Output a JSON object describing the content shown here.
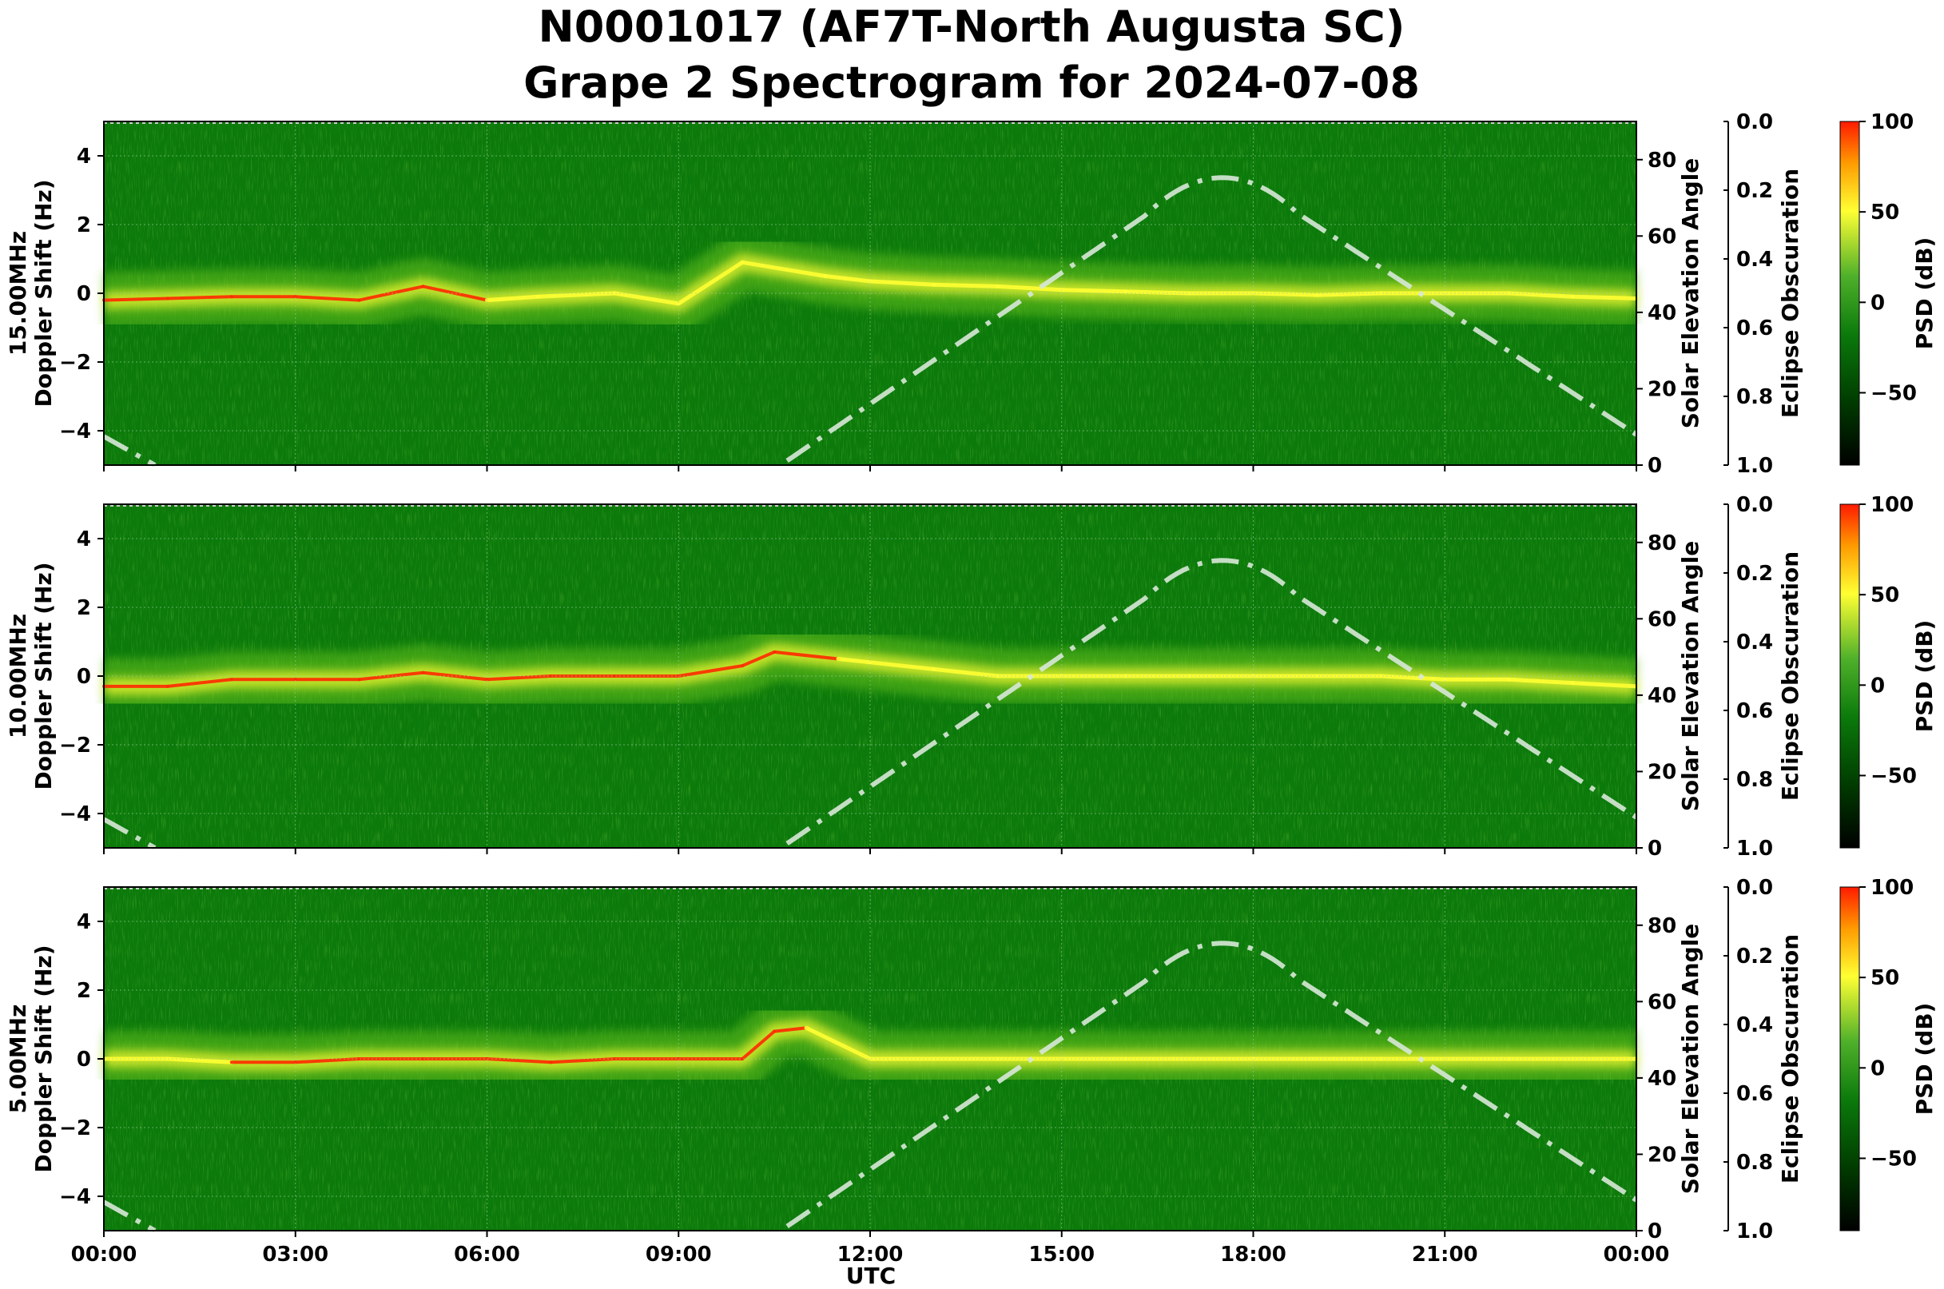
{
  "figure": {
    "title_line1": "N0001017 (AF7T-North Augusta SC)",
    "title_line2": "Grape 2 Spectrogram for 2024-07-08",
    "xlabel": "UTC"
  },
  "colors": {
    "background": "#0b7a0b",
    "mid": "#66c21a",
    "bright": "#ffff33",
    "hot": "#ff2a00",
    "elevation_curve": "#d8e8d8",
    "grid": "#9fcf9f"
  },
  "chart_data": [
    {
      "type": "heatmap",
      "frequency_label": "15.00MHz",
      "ylabel": "Doppler Shift (Hz)",
      "ylim": [
        -5,
        5
      ],
      "yticks": [
        -4,
        -2,
        0,
        2,
        4
      ],
      "ytick_labels": [
        "−4",
        "−2",
        "0",
        "2",
        "4"
      ],
      "x_range": [
        "00:00",
        "00:00"
      ],
      "xticks_hours": [
        0,
        3,
        6,
        9,
        12,
        15,
        18,
        21,
        24
      ],
      "xtick_labels": [
        "00:00",
        "03:00",
        "06:00",
        "09:00",
        "12:00",
        "15:00",
        "18:00",
        "21:00",
        "00:00"
      ],
      "right_axis_label": "Solar Elevation Angle",
      "right_axis_range": [
        0,
        90
      ],
      "right_ticks": [
        0,
        20,
        40,
        60,
        80
      ],
      "obscuration_label": "Eclipse Obscuration",
      "obscuration_ticks": [
        "0.0",
        "0.2",
        "0.4",
        "0.6",
        "0.8",
        "1.0"
      ],
      "colorbar_label": "PSD (dB)",
      "colorbar_ticks": [
        "100",
        "50",
        "0",
        "−50"
      ],
      "colorbar_values": [
        100,
        50,
        0,
        -50
      ],
      "colorbar_range": [
        -90,
        100
      ],
      "grid": true,
      "doppler_trace": {
        "hours": [
          0,
          1,
          2,
          3,
          4,
          5,
          6,
          6.8,
          8,
          9,
          10,
          11.3,
          12,
          13,
          14,
          15,
          16,
          17,
          18,
          19,
          20,
          21,
          22,
          23,
          24
        ],
        "values_hz": [
          -0.2,
          -0.15,
          -0.1,
          -0.1,
          -0.2,
          0.2,
          -0.2,
          -0.1,
          0.0,
          -0.3,
          0.9,
          0.5,
          0.35,
          0.25,
          0.2,
          0.1,
          0.05,
          0.0,
          0.0,
          -0.05,
          0.0,
          0.0,
          0.0,
          -0.1,
          -0.15
        ],
        "hot": [
          true,
          true,
          true,
          true,
          true,
          true,
          true,
          false,
          false,
          false,
          false,
          false,
          false,
          false,
          false,
          false,
          false,
          false,
          false,
          false,
          false,
          false,
          false,
          false,
          false
        ]
      },
      "solar_elevation": {
        "hours": [
          0,
          0.8,
          10.6,
          17.5,
          24
        ],
        "degrees": [
          7.5,
          0,
          0,
          79,
          8
        ]
      }
    },
    {
      "type": "heatmap",
      "frequency_label": "10.00MHz",
      "ylabel": "Doppler Shift (Hz)",
      "ylim": [
        -5,
        5
      ],
      "yticks": [
        -4,
        -2,
        0,
        2,
        4
      ],
      "ytick_labels": [
        "−4",
        "−2",
        "0",
        "2",
        "4"
      ],
      "x_range": [
        "00:00",
        "00:00"
      ],
      "xticks_hours": [
        0,
        3,
        6,
        9,
        12,
        15,
        18,
        21,
        24
      ],
      "xtick_labels": [
        "00:00",
        "03:00",
        "06:00",
        "09:00",
        "12:00",
        "15:00",
        "18:00",
        "21:00",
        "00:00"
      ],
      "right_axis_label": "Solar Elevation Angle",
      "right_axis_range": [
        0,
        90
      ],
      "right_ticks": [
        0,
        20,
        40,
        60,
        80
      ],
      "obscuration_label": "Eclipse Obscuration",
      "obscuration_ticks": [
        "0.0",
        "0.2",
        "0.4",
        "0.6",
        "0.8",
        "1.0"
      ],
      "colorbar_label": "PSD (dB)",
      "colorbar_ticks": [
        "100",
        "50",
        "0",
        "−50"
      ],
      "colorbar_values": [
        100,
        50,
        0,
        -50
      ],
      "colorbar_range": [
        -90,
        100
      ],
      "grid": true,
      "doppler_trace": {
        "hours": [
          0,
          1,
          2,
          3,
          4,
          5,
          6,
          7,
          8,
          9,
          10,
          10.5,
          11.5,
          12,
          13,
          14,
          15,
          16,
          17,
          18,
          19,
          20,
          21,
          22,
          23,
          24
        ],
        "values_hz": [
          -0.3,
          -0.3,
          -0.1,
          -0.1,
          -0.1,
          0.1,
          -0.1,
          0.0,
          0.0,
          0.0,
          0.3,
          0.7,
          0.5,
          0.4,
          0.2,
          0.0,
          0.0,
          0.0,
          0.0,
          0.0,
          0.0,
          0.0,
          -0.1,
          -0.1,
          -0.2,
          -0.3
        ],
        "hot": [
          true,
          true,
          true,
          true,
          true,
          true,
          true,
          true,
          true,
          true,
          true,
          true,
          true,
          false,
          false,
          false,
          false,
          false,
          false,
          false,
          false,
          false,
          false,
          false,
          false,
          false
        ]
      },
      "solar_elevation": {
        "hours": [
          0,
          0.8,
          10.6,
          17.5,
          24
        ],
        "degrees": [
          7.5,
          0,
          0,
          79,
          8
        ]
      }
    },
    {
      "type": "heatmap",
      "frequency_label": "5.00MHz",
      "ylabel": "Doppler Shift (Hz)",
      "ylim": [
        -5,
        5
      ],
      "yticks": [
        -4,
        -2,
        0,
        2,
        4
      ],
      "ytick_labels": [
        "−4",
        "−2",
        "0",
        "2",
        "4"
      ],
      "x_range": [
        "00:00",
        "00:00"
      ],
      "xticks_hours": [
        0,
        3,
        6,
        9,
        12,
        15,
        18,
        21,
        24
      ],
      "xtick_labels": [
        "00:00",
        "03:00",
        "06:00",
        "09:00",
        "12:00",
        "15:00",
        "18:00",
        "21:00",
        "00:00"
      ],
      "right_axis_label": "Solar Elevation Angle",
      "right_axis_range": [
        0,
        90
      ],
      "right_ticks": [
        0,
        20,
        40,
        60,
        80
      ],
      "obscuration_label": "Eclipse Obscuration",
      "obscuration_ticks": [
        "0.0",
        "0.2",
        "0.4",
        "0.6",
        "0.8",
        "1.0"
      ],
      "colorbar_label": "PSD (dB)",
      "colorbar_ticks": [
        "100",
        "50",
        "0",
        "−50"
      ],
      "colorbar_values": [
        100,
        50,
        0,
        -50
      ],
      "colorbar_range": [
        -90,
        100
      ],
      "grid": true,
      "doppler_trace": {
        "hours": [
          0,
          1,
          2,
          3,
          4,
          5,
          6,
          7,
          8,
          9,
          10,
          10.5,
          11,
          12,
          14,
          16,
          18,
          20,
          22,
          24
        ],
        "values_hz": [
          0.0,
          0.0,
          -0.1,
          -0.1,
          0.0,
          0.0,
          0.0,
          -0.1,
          0.0,
          0.0,
          0.0,
          0.8,
          0.9,
          0.0,
          0.0,
          0.0,
          0.0,
          0.0,
          0.0,
          0.0
        ],
        "hot": [
          false,
          false,
          true,
          true,
          true,
          true,
          true,
          true,
          true,
          true,
          true,
          true,
          true,
          false,
          false,
          false,
          false,
          false,
          false,
          false
        ]
      },
      "solar_elevation": {
        "hours": [
          0,
          0.8,
          10.6,
          17.5,
          24
        ],
        "degrees": [
          7.5,
          0,
          0,
          79,
          8
        ]
      }
    }
  ]
}
